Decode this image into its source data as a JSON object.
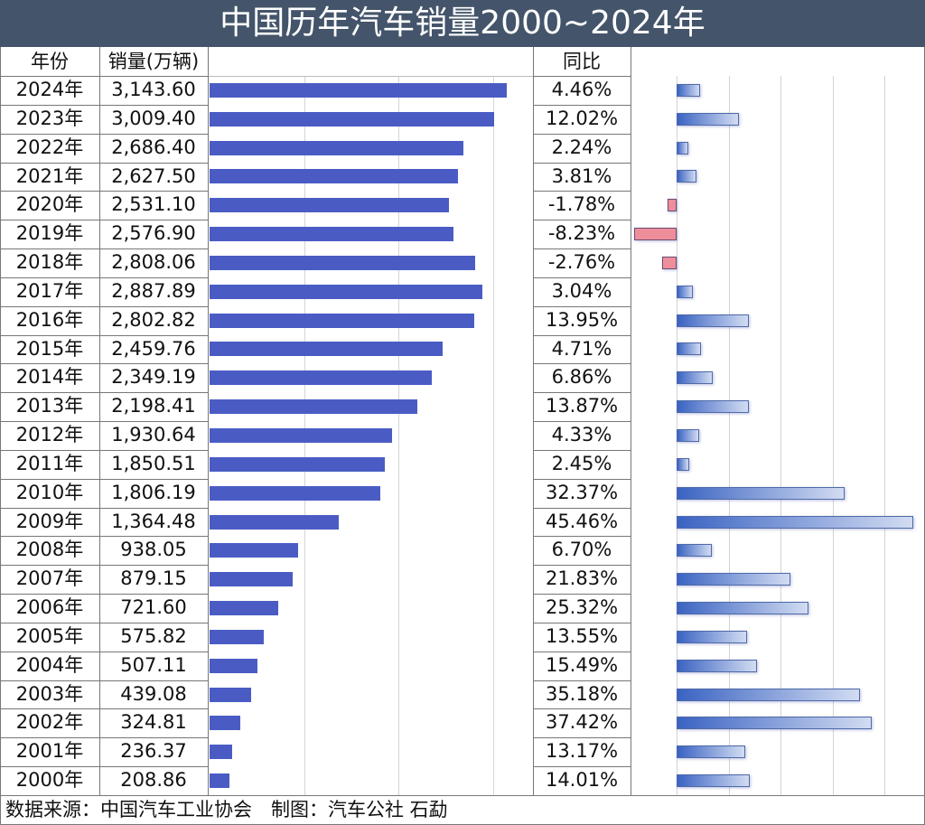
{
  "title": "中国历年汽车销量2000~2024年",
  "headers": {
    "year": "年份",
    "sales": "销量(万辆)",
    "yoy": "同比"
  },
  "footer": "数据来源：中国汽车工业协会　制图：汽车公社 石勐",
  "colors": {
    "title_bg": "#44546a",
    "sales_bar": "#4a5cc4",
    "yoy_positive": "#3a63c2",
    "yoy_negative": "#ef8e9b"
  },
  "chart_data": {
    "type": "table",
    "columns": [
      "年份",
      "销量(万辆)",
      "同比"
    ],
    "rows": [
      {
        "year": "2024年",
        "sales": 3143.6,
        "sales_label": "3,143.60",
        "yoy": 4.46,
        "yoy_label": "4.46%"
      },
      {
        "year": "2023年",
        "sales": 3009.4,
        "sales_label": "3,009.40",
        "yoy": 12.02,
        "yoy_label": "12.02%"
      },
      {
        "year": "2022年",
        "sales": 2686.4,
        "sales_label": "2,686.40",
        "yoy": 2.24,
        "yoy_label": "2.24%"
      },
      {
        "year": "2021年",
        "sales": 2627.5,
        "sales_label": "2,627.50",
        "yoy": 3.81,
        "yoy_label": "3.81%"
      },
      {
        "year": "2020年",
        "sales": 2531.1,
        "sales_label": "2,531.10",
        "yoy": -1.78,
        "yoy_label": "-1.78%"
      },
      {
        "year": "2019年",
        "sales": 2576.9,
        "sales_label": "2,576.90",
        "yoy": -8.23,
        "yoy_label": "-8.23%"
      },
      {
        "year": "2018年",
        "sales": 2808.06,
        "sales_label": "2,808.06",
        "yoy": -2.76,
        "yoy_label": "-2.76%"
      },
      {
        "year": "2017年",
        "sales": 2887.89,
        "sales_label": "2,887.89",
        "yoy": 3.04,
        "yoy_label": "3.04%"
      },
      {
        "year": "2016年",
        "sales": 2802.82,
        "sales_label": "2,802.82",
        "yoy": 13.95,
        "yoy_label": "13.95%"
      },
      {
        "year": "2015年",
        "sales": 2459.76,
        "sales_label": "2,459.76",
        "yoy": 4.71,
        "yoy_label": "4.71%"
      },
      {
        "year": "2014年",
        "sales": 2349.19,
        "sales_label": "2,349.19",
        "yoy": 6.86,
        "yoy_label": "6.86%"
      },
      {
        "year": "2013年",
        "sales": 2198.41,
        "sales_label": "2,198.41",
        "yoy": 13.87,
        "yoy_label": "13.87%"
      },
      {
        "year": "2012年",
        "sales": 1930.64,
        "sales_label": "1,930.64",
        "yoy": 4.33,
        "yoy_label": "4.33%"
      },
      {
        "year": "2011年",
        "sales": 1850.51,
        "sales_label": "1,850.51",
        "yoy": 2.45,
        "yoy_label": "2.45%"
      },
      {
        "year": "2010年",
        "sales": 1806.19,
        "sales_label": "1,806.19",
        "yoy": 32.37,
        "yoy_label": "32.37%"
      },
      {
        "year": "2009年",
        "sales": 1364.48,
        "sales_label": "1,364.48",
        "yoy": 45.46,
        "yoy_label": "45.46%"
      },
      {
        "year": "2008年",
        "sales": 938.05,
        "sales_label": "938.05",
        "yoy": 6.7,
        "yoy_label": "6.70%"
      },
      {
        "year": "2007年",
        "sales": 879.15,
        "sales_label": "879.15",
        "yoy": 21.83,
        "yoy_label": "21.83%"
      },
      {
        "year": "2006年",
        "sales": 721.6,
        "sales_label": "721.60",
        "yoy": 25.32,
        "yoy_label": "25.32%"
      },
      {
        "year": "2005年",
        "sales": 575.82,
        "sales_label": "575.82",
        "yoy": 13.55,
        "yoy_label": "13.55%"
      },
      {
        "year": "2004年",
        "sales": 507.11,
        "sales_label": "507.11",
        "yoy": 15.49,
        "yoy_label": "15.49%"
      },
      {
        "year": "2003年",
        "sales": 439.08,
        "sales_label": "439.08",
        "yoy": 35.18,
        "yoy_label": "35.18%"
      },
      {
        "year": "2002年",
        "sales": 324.81,
        "sales_label": "324.81",
        "yoy": 37.42,
        "yoy_label": "37.42%"
      },
      {
        "year": "2001年",
        "sales": 236.37,
        "sales_label": "236.37",
        "yoy": 13.17,
        "yoy_label": "13.17%"
      },
      {
        "year": "2000年",
        "sales": 208.86,
        "sales_label": "208.86",
        "yoy": 14.01,
        "yoy_label": "14.01%"
      }
    ],
    "sales_axis": {
      "min": 0,
      "gridline_step": 1000
    },
    "yoy_axis": {
      "gridline_step": 10
    },
    "grid": true
  }
}
